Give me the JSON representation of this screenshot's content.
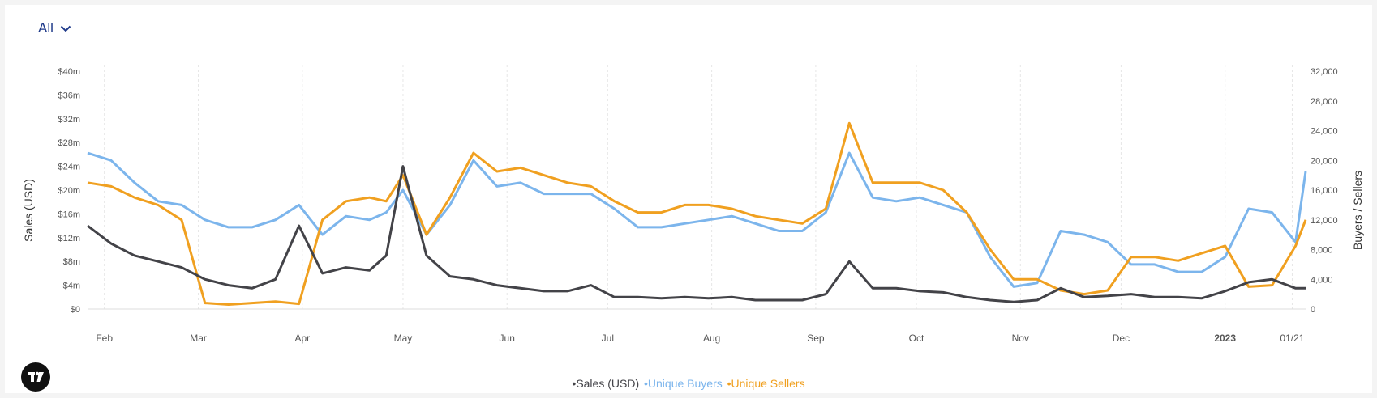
{
  "range_selector": {
    "label": "All"
  },
  "legend": [
    {
      "label": "Sales (USD)",
      "color": "#434348"
    },
    {
      "label": "Unique Buyers",
      "color": "#7cb5ec"
    },
    {
      "label": "Unique Sellers",
      "color": "#f0a020"
    }
  ],
  "logo": {
    "icon": "tradingview-logo"
  },
  "chart_data": {
    "type": "line",
    "ylabel": "Sales (USD)",
    "y2label": "Buyers / Sellers",
    "ylim": [
      0,
      40000000
    ],
    "y2lim": [
      0,
      32000
    ],
    "y_ticks": [
      "$0",
      "$4m",
      "$8m",
      "$12m",
      "$16m",
      "$20m",
      "$24m",
      "$28m",
      "$32m",
      "$36m",
      "$40m"
    ],
    "y2_ticks": [
      "0",
      "4,000",
      "8,000",
      "12,000",
      "16,000",
      "20,000",
      "24,000",
      "28,000",
      "32,000"
    ],
    "x_ticks": [
      "Feb",
      "Mar",
      "Apr",
      "May",
      "Jun",
      "Jul",
      "Aug",
      "Sep",
      "Oct",
      "Nov",
      "Dec",
      "2023",
      "01/21"
    ],
    "x_tick_dates": [
      "2022-02-01",
      "2022-03-01",
      "2022-04-01",
      "2022-05-01",
      "2022-06-01",
      "2022-07-01",
      "2022-08-01",
      "2022-09-01",
      "2022-10-01",
      "2022-11-01",
      "2022-12-01",
      "2023-01-01",
      "2023-01-21"
    ],
    "grid": true,
    "legend_position": "bottom",
    "x": [
      "2022-01-27",
      "2022-02-03",
      "2022-02-10",
      "2022-02-17",
      "2022-02-24",
      "2022-03-03",
      "2022-03-10",
      "2022-03-17",
      "2022-03-24",
      "2022-03-31",
      "2022-04-07",
      "2022-04-14",
      "2022-04-21",
      "2022-04-26",
      "2022-05-01",
      "2022-05-08",
      "2022-05-15",
      "2022-05-22",
      "2022-05-29",
      "2022-06-05",
      "2022-06-12",
      "2022-06-19",
      "2022-06-26",
      "2022-07-03",
      "2022-07-10",
      "2022-07-17",
      "2022-07-24",
      "2022-07-31",
      "2022-08-07",
      "2022-08-14",
      "2022-08-21",
      "2022-08-28",
      "2022-09-04",
      "2022-09-11",
      "2022-09-18",
      "2022-09-25",
      "2022-10-02",
      "2022-10-09",
      "2022-10-16",
      "2022-10-23",
      "2022-10-30",
      "2022-11-06",
      "2022-11-13",
      "2022-11-20",
      "2022-11-27",
      "2022-12-04",
      "2022-12-11",
      "2022-12-18",
      "2022-12-25",
      "2023-01-01",
      "2023-01-08",
      "2023-01-15",
      "2023-01-22",
      "2023-01-25"
    ],
    "series": [
      {
        "name": "Sales (USD)",
        "axis": "left",
        "values": [
          14000000,
          11000000,
          9000000,
          8000000,
          7000000,
          5000000,
          4000000,
          3500000,
          5000000,
          14000000,
          6000000,
          7000000,
          6500000,
          9000000,
          24000000,
          9000000,
          5500000,
          5000000,
          4000000,
          3500000,
          3000000,
          3000000,
          4000000,
          2000000,
          2000000,
          1800000,
          2000000,
          1800000,
          2000000,
          1500000,
          1500000,
          1500000,
          2500000,
          8000000,
          3500000,
          3500000,
          3000000,
          2800000,
          2000000,
          1500000,
          1200000,
          1500000,
          3500000,
          2000000,
          2200000,
          2500000,
          2000000,
          2000000,
          1800000,
          3000000,
          4500000,
          5000000,
          3500000,
          3500000
        ]
      },
      {
        "name": "Unique Buyers",
        "axis": "right",
        "values": [
          21000,
          20000,
          17000,
          14500,
          14000,
          12000,
          11000,
          11000,
          12000,
          14000,
          10000,
          12500,
          12000,
          13000,
          16000,
          10000,
          14000,
          20000,
          16500,
          17000,
          15500,
          15500,
          15500,
          13500,
          11000,
          11000,
          11500,
          12000,
          12500,
          11500,
          10500,
          10500,
          13000,
          21000,
          15000,
          14500,
          15000,
          14000,
          13000,
          7000,
          3000,
          3500,
          10500,
          10000,
          9000,
          6000,
          6000,
          5000,
          5000,
          7000,
          13500,
          13000,
          9000,
          18500
        ]
      },
      {
        "name": "Unique Sellers",
        "axis": "right",
        "values": [
          17000,
          16500,
          15000,
          14000,
          12000,
          800,
          600,
          800,
          1000,
          700,
          12000,
          14500,
          15000,
          14500,
          18000,
          10000,
          15000,
          21000,
          18500,
          19000,
          18000,
          17000,
          16500,
          14500,
          13000,
          13000,
          14000,
          14000,
          13500,
          12500,
          12000,
          11500,
          13500,
          25000,
          17000,
          17000,
          17000,
          16000,
          13000,
          8000,
          4000,
          4000,
          2500,
          2000,
          2500,
          7000,
          7000,
          6500,
          7500,
          8500,
          3000,
          3200,
          8500,
          12000
        ]
      }
    ]
  }
}
